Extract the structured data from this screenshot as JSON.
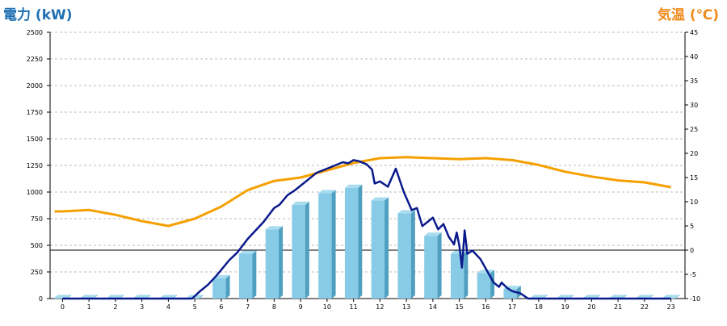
{
  "chart_data": {
    "type": "bar",
    "y_left_title": "電力 (kW)",
    "y_right_title": "気温 (℃)",
    "colors": {
      "left_title": "#1f6fb3",
      "right_title": "#f08a1c",
      "bar_front": "#87cbe6",
      "bar_side": "#4f9fc0",
      "bar_top": "#a9dcef",
      "power_line": "#0a1a8c",
      "temp_line": "#f5a000",
      "grid": "#bbbbbb",
      "axis": "#000000"
    },
    "x_ticks": [
      "0",
      "1",
      "2",
      "3",
      "4",
      "5",
      "6",
      "7",
      "8",
      "9",
      "10",
      "11",
      "12",
      "13",
      "14",
      "15",
      "16",
      "17",
      "18",
      "19",
      "20",
      "21",
      "22",
      "23"
    ],
    "y_left_ticks": [
      "0",
      "250",
      "500",
      "750",
      "1000",
      "1250",
      "1500",
      "1750",
      "2000",
      "2250",
      "2500"
    ],
    "y_right_ticks": [
      "-10",
      "-5",
      "0",
      "5",
      "10",
      "15",
      "20",
      "25",
      "30",
      "35",
      "40",
      "45"
    ],
    "y_left_range": [
      0,
      2500
    ],
    "y_right_range": [
      -10,
      45
    ],
    "grid": true,
    "bars": {
      "categories": [
        0,
        1,
        2,
        3,
        4,
        5,
        6,
        7,
        8,
        9,
        10,
        11,
        12,
        13,
        14,
        15,
        16,
        17,
        18,
        19,
        20,
        21,
        22,
        23
      ],
      "values": [
        5,
        5,
        5,
        5,
        5,
        5,
        190,
        420,
        650,
        880,
        990,
        1040,
        920,
        800,
        590,
        420,
        240,
        90,
        5,
        5,
        5,
        5,
        5,
        5
      ]
    },
    "power_line": {
      "x": [
        0,
        1,
        2,
        3,
        4,
        4.9,
        5.2,
        5.5,
        5.8,
        6.0,
        6.3,
        6.6,
        7.0,
        7.3,
        7.6,
        8.0,
        8.2,
        8.5,
        8.8,
        9.0,
        9.3,
        9.6,
        10.0,
        10.3,
        10.6,
        10.8,
        11.0,
        11.2,
        11.5,
        11.7,
        11.8,
        12.0,
        12.3,
        12.6,
        12.9,
        13.2,
        13.4,
        13.6,
        13.8,
        14.0,
        14.2,
        14.4,
        14.6,
        14.8,
        14.9,
        15.0,
        15.1,
        15.2,
        15.3,
        15.5,
        15.8,
        16.0,
        16.3,
        16.5,
        16.6,
        16.8,
        17.0,
        17.3,
        17.6,
        18,
        19,
        20,
        21,
        22,
        23
      ],
      "y": [
        0,
        0,
        0,
        0,
        0,
        0,
        70,
        130,
        210,
        270,
        360,
        430,
        560,
        640,
        720,
        850,
        880,
        970,
        1020,
        1060,
        1120,
        1180,
        1220,
        1250,
        1280,
        1270,
        1300,
        1290,
        1260,
        1210,
        1080,
        1100,
        1050,
        1220,
        1000,
        830,
        850,
        680,
        720,
        760,
        650,
        700,
        580,
        510,
        620,
        500,
        290,
        640,
        420,
        450,
        370,
        280,
        150,
        110,
        150,
        100,
        70,
        50,
        0,
        0,
        0,
        0,
        0,
        0,
        0
      ]
    },
    "temp_line": {
      "x": [
        -0.3,
        0,
        1,
        2,
        3,
        4,
        5,
        6,
        7,
        8,
        9,
        10,
        11,
        12,
        13,
        14,
        15,
        16,
        17,
        18,
        19,
        20,
        21,
        22,
        23
      ],
      "y": [
        8,
        8,
        8.3,
        7.3,
        6,
        5,
        6.5,
        9,
        12.4,
        14.3,
        15,
        16.5,
        18,
        19,
        19.2,
        19,
        18.8,
        19,
        18.6,
        17.6,
        16.2,
        15.2,
        14.4,
        14,
        13
      ]
    }
  }
}
